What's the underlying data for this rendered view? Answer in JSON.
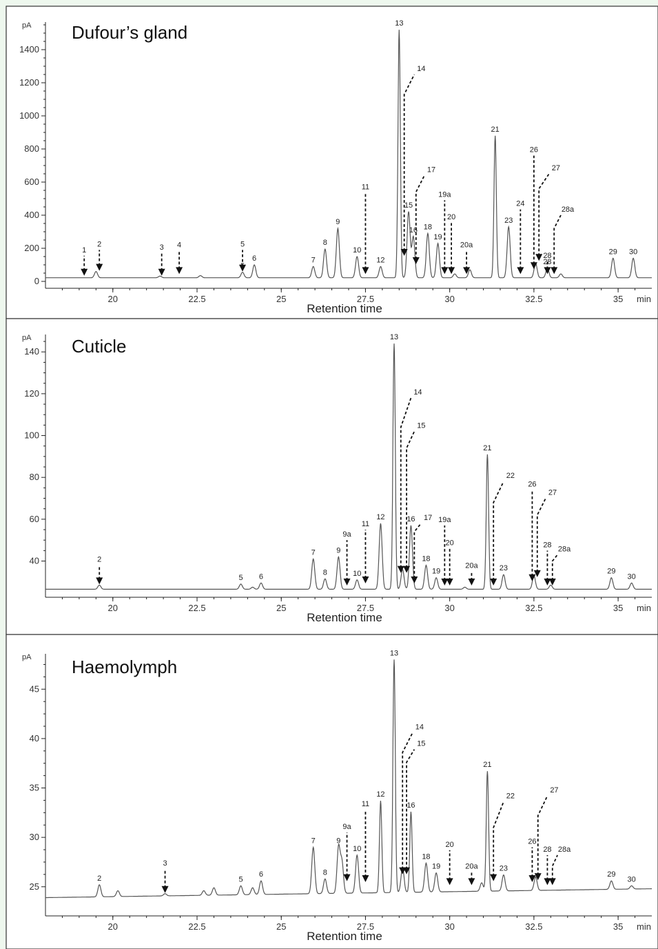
{
  "chart_data": [
    {
      "type": "line",
      "title": "Dufour’s gland",
      "xlabel": "Retention time",
      "x_unit": "min",
      "ylabel": "pA",
      "xlim": [
        18,
        36
      ],
      "ylim": [
        0,
        1550
      ],
      "x_ticks": [
        20,
        22.5,
        25,
        27.5,
        30,
        32.5,
        35
      ],
      "x_tick_labels": [
        "20",
        "22.5",
        "25",
        "27.5",
        "30",
        "32.5",
        "35"
      ],
      "y_ticks": [
        0,
        200,
        400,
        600,
        800,
        1000,
        1200,
        1400
      ],
      "y_tick_labels": [
        "0",
        "200",
        "400",
        "600",
        "800",
        "1000",
        "1200",
        "1400"
      ],
      "baseline": 22,
      "peaks": [
        {
          "label": "",
          "x": 19.5,
          "y": 60
        },
        {
          "label": "",
          "x": 21.4,
          "y": 32
        },
        {
          "label": "",
          "x": 22.6,
          "y": 35
        },
        {
          "label": "5",
          "x": 23.85,
          "y": 55
        },
        {
          "label": "6",
          "x": 24.2,
          "y": 100
        },
        {
          "label": "7",
          "x": 25.95,
          "y": 90
        },
        {
          "label": "8",
          "x": 26.3,
          "y": 195
        },
        {
          "label": "9",
          "x": 26.68,
          "y": 320
        },
        {
          "label": "10",
          "x": 27.25,
          "y": 150
        },
        {
          "label": "12",
          "x": 27.95,
          "y": 90
        },
        {
          "label": "13",
          "x": 28.5,
          "y": 1520
        },
        {
          "label": "15",
          "x": 28.78,
          "y": 420
        },
        {
          "label": "16",
          "x": 28.92,
          "y": 270
        },
        {
          "label": "18",
          "x": 29.35,
          "y": 290
        },
        {
          "label": "19",
          "x": 29.65,
          "y": 230
        },
        {
          "label": "",
          "x": 30.15,
          "y": 45
        },
        {
          "label": "",
          "x": 30.6,
          "y": 70
        },
        {
          "label": "21",
          "x": 31.35,
          "y": 880
        },
        {
          "label": "23",
          "x": 31.75,
          "y": 330
        },
        {
          "label": "",
          "x": 32.55,
          "y": 110
        },
        {
          "label": "28",
          "x": 32.9,
          "y": 80
        },
        {
          "label": "",
          "x": 33.3,
          "y": 45
        },
        {
          "label": "29",
          "x": 34.85,
          "y": 140
        },
        {
          "label": "30",
          "x": 35.45,
          "y": 140
        }
      ],
      "arrows": [
        {
          "label": "1",
          "x": 19.15,
          "tip": 30,
          "top": 155
        },
        {
          "label": "2",
          "x": 19.6,
          "tip": 60,
          "top": 190
        },
        {
          "label": "3",
          "x": 21.45,
          "tip": 30,
          "top": 170
        },
        {
          "label": "4",
          "x": 21.97,
          "tip": 40,
          "top": 185
        },
        {
          "label": "5",
          "x": 23.85,
          "tip": 55,
          "top": 190
        },
        {
          "label": "11",
          "x": 27.5,
          "tip": 40,
          "top": 535
        },
        {
          "label": "14",
          "x": 28.65,
          "tip": 150,
          "top": 1130,
          "lx": 28.95,
          "ltop": 1250
        },
        {
          "label": "17",
          "x": 29.0,
          "tip": 100,
          "top": 540,
          "lx": 29.25,
          "ltop": 640
        },
        {
          "label": "19a",
          "x": 29.85,
          "tip": 40,
          "top": 490
        },
        {
          "label": "20",
          "x": 30.05,
          "tip": 40,
          "top": 355
        },
        {
          "label": "20a",
          "x": 30.5,
          "tip": 40,
          "top": 185
        },
        {
          "label": "24",
          "x": 32.1,
          "tip": 40,
          "top": 435
        },
        {
          "label": "26",
          "x": 32.5,
          "tip": 70,
          "top": 760
        },
        {
          "label": "27",
          "x": 32.65,
          "tip": 120,
          "top": 560,
          "lx": 32.95,
          "ltop": 650
        },
        {
          "label": "28",
          "x": 32.9,
          "tip": 40,
          "top": 120
        },
        {
          "label": "28a",
          "x": 33.1,
          "tip": 40,
          "top": 320,
          "lx": 33.3,
          "ltop": 400
        }
      ]
    },
    {
      "type": "line",
      "title": "Cuticle",
      "xlabel": "Retention time",
      "x_unit": "min",
      "ylabel": "pA",
      "xlim": [
        18,
        36
      ],
      "ylim": [
        24,
        147
      ],
      "x_ticks": [
        20,
        22.5,
        25,
        27.5,
        30,
        32.5,
        35
      ],
      "x_tick_labels": [
        "20",
        "22.5",
        "25",
        "27.5",
        "30",
        "32.5",
        "35"
      ],
      "y_ticks": [
        40,
        60,
        80,
        100,
        120,
        140
      ],
      "y_tick_labels": [
        "40",
        "60",
        "80",
        "100",
        "120",
        "140"
      ],
      "baseline": 26.5,
      "peaks": [
        {
          "label": "",
          "x": 19.6,
          "y": 28.5
        },
        {
          "label": "5",
          "x": 23.8,
          "y": 29
        },
        {
          "label": "6",
          "x": 24.4,
          "y": 29.5
        },
        {
          "label": "",
          "x": 24.15,
          "y": 27.5
        },
        {
          "label": "7",
          "x": 25.95,
          "y": 41
        },
        {
          "label": "8",
          "x": 26.3,
          "y": 31.5
        },
        {
          "label": "9",
          "x": 26.7,
          "y": 42
        },
        {
          "label": "10",
          "x": 27.25,
          "y": 31
        },
        {
          "label": "12",
          "x": 27.95,
          "y": 58
        },
        {
          "label": "13",
          "x": 28.35,
          "y": 144
        },
        {
          "label": "",
          "x": 28.6,
          "y": 36
        },
        {
          "label": "16",
          "x": 28.85,
          "y": 57
        },
        {
          "label": "18",
          "x": 29.3,
          "y": 38
        },
        {
          "label": "19",
          "x": 29.6,
          "y": 32
        },
        {
          "label": "",
          "x": 30.45,
          "y": 27.5
        },
        {
          "label": "21",
          "x": 31.12,
          "y": 91
        },
        {
          "label": "23",
          "x": 31.6,
          "y": 33.5
        },
        {
          "label": "",
          "x": 32.5,
          "y": 33
        },
        {
          "label": "",
          "x": 33.0,
          "y": 28.5
        },
        {
          "label": "29",
          "x": 34.8,
          "y": 32
        },
        {
          "label": "30",
          "x": 35.4,
          "y": 29.5
        }
      ],
      "arrows": [
        {
          "label": "2",
          "x": 19.6,
          "tip": 28.5,
          "top": 38
        },
        {
          "label": "9a",
          "x": 26.95,
          "tip": 28,
          "top": 50
        },
        {
          "label": "11",
          "x": 27.5,
          "tip": 29,
          "top": 55
        },
        {
          "label": "14",
          "x": 28.55,
          "tip": 34,
          "top": 104,
          "lx": 28.85,
          "ltop": 118
        },
        {
          "label": "15",
          "x": 28.72,
          "tip": 34,
          "top": 94,
          "lx": 28.95,
          "ltop": 102
        },
        {
          "label": "17",
          "x": 28.95,
          "tip": 29,
          "top": 54,
          "lx": 29.15,
          "ltop": 58
        },
        {
          "label": "19a",
          "x": 29.85,
          "tip": 28,
          "top": 57
        },
        {
          "label": "20",
          "x": 30.0,
          "tip": 28,
          "top": 46
        },
        {
          "label": "20a",
          "x": 30.65,
          "tip": 28,
          "top": 35
        },
        {
          "label": "22",
          "x": 31.3,
          "tip": 28,
          "top": 68,
          "lx": 31.6,
          "ltop": 78
        },
        {
          "label": "26",
          "x": 32.45,
          "tip": 30,
          "top": 74
        },
        {
          "label": "27",
          "x": 32.6,
          "tip": 32,
          "top": 62,
          "lx": 32.85,
          "ltop": 70
        },
        {
          "label": "28",
          "x": 32.9,
          "tip": 28,
          "top": 45
        },
        {
          "label": "28a",
          "x": 33.05,
          "tip": 28,
          "top": 40,
          "lx": 33.2,
          "ltop": 43
        }
      ]
    },
    {
      "type": "line",
      "title": "Haemolymph",
      "xlabel": "Retention time",
      "x_unit": "min",
      "ylabel": "pA",
      "xlim": [
        18,
        36
      ],
      "ylim": [
        22.4,
        48.3
      ],
      "x_ticks": [
        20,
        22.5,
        25,
        27.5,
        30,
        32.5,
        35
      ],
      "x_tick_labels": [
        "20",
        "22.5",
        "25",
        "27.5",
        "30",
        "32.5",
        "35"
      ],
      "y_ticks": [
        25,
        30,
        35,
        40,
        45
      ],
      "y_tick_labels": [
        "25",
        "30",
        "35",
        "40",
        "45"
      ],
      "baseline_start": 23.9,
      "baseline_end": 24.8,
      "peaks": [
        {
          "label": "2",
          "x": 19.6,
          "y": 25.2
        },
        {
          "label": "",
          "x": 20.15,
          "y": 24.6
        },
        {
          "label": "",
          "x": 21.55,
          "y": 24.3
        },
        {
          "label": "",
          "x": 22.7,
          "y": 24.6
        },
        {
          "label": "",
          "x": 23.0,
          "y": 24.9
        },
        {
          "label": "5",
          "x": 23.8,
          "y": 25.1
        },
        {
          "label": "",
          "x": 24.15,
          "y": 24.9
        },
        {
          "label": "6",
          "x": 24.4,
          "y": 25.6
        },
        {
          "label": "7",
          "x": 25.95,
          "y": 29.0
        },
        {
          "label": "8",
          "x": 26.3,
          "y": 25.8
        },
        {
          "label": "9",
          "x": 26.7,
          "y": 29.0
        },
        {
          "label": "",
          "x": 26.8,
          "y": 27.5
        },
        {
          "label": "10",
          "x": 27.25,
          "y": 28.2
        },
        {
          "label": "12",
          "x": 27.95,
          "y": 33.7
        },
        {
          "label": "13",
          "x": 28.35,
          "y": 48.0
        },
        {
          "label": "",
          "x": 28.6,
          "y": 27.0
        },
        {
          "label": "16",
          "x": 28.85,
          "y": 32.6
        },
        {
          "label": "18",
          "x": 29.3,
          "y": 27.4
        },
        {
          "label": "19",
          "x": 29.6,
          "y": 26.4
        },
        {
          "label": "",
          "x": 30.95,
          "y": 25.4
        },
        {
          "label": "21",
          "x": 31.12,
          "y": 36.7
        },
        {
          "label": "23",
          "x": 31.6,
          "y": 26.2
        },
        {
          "label": "",
          "x": 32.55,
          "y": 26.0
        },
        {
          "label": "29",
          "x": 34.8,
          "y": 25.6
        },
        {
          "label": "30",
          "x": 35.4,
          "y": 25.1
        }
      ],
      "arrows": [
        {
          "label": "3",
          "x": 21.55,
          "tip": 24.3,
          "top": 26.8
        },
        {
          "label": "9a",
          "x": 26.95,
          "tip": 25.5,
          "top": 30.5
        },
        {
          "label": "11",
          "x": 27.5,
          "tip": 25.4,
          "top": 32.8
        },
        {
          "label": "14",
          "x": 28.6,
          "tip": 26.2,
          "top": 38.6,
          "lx": 28.9,
          "ltop": 40.6
        },
        {
          "label": "15",
          "x": 28.72,
          "tip": 26.2,
          "top": 37.6,
          "lx": 28.95,
          "ltop": 38.9
        },
        {
          "label": "20",
          "x": 30.0,
          "tip": 25.1,
          "top": 28.7
        },
        {
          "label": "20a",
          "x": 30.65,
          "tip": 25.1,
          "top": 26.5
        },
        {
          "label": "22",
          "x": 31.3,
          "tip": 25.5,
          "top": 31.0,
          "lx": 31.6,
          "ltop": 33.6
        },
        {
          "label": "26",
          "x": 32.45,
          "tip": 25.4,
          "top": 29.0
        },
        {
          "label": "27",
          "x": 32.62,
          "tip": 25.6,
          "top": 32.2,
          "lx": 32.9,
          "ltop": 34.2
        },
        {
          "label": "28",
          "x": 32.9,
          "tip": 25.1,
          "top": 28.2
        },
        {
          "label": "28a",
          "x": 33.05,
          "tip": 25.1,
          "top": 27.1,
          "lx": 33.2,
          "ltop": 28.2
        }
      ]
    }
  ]
}
